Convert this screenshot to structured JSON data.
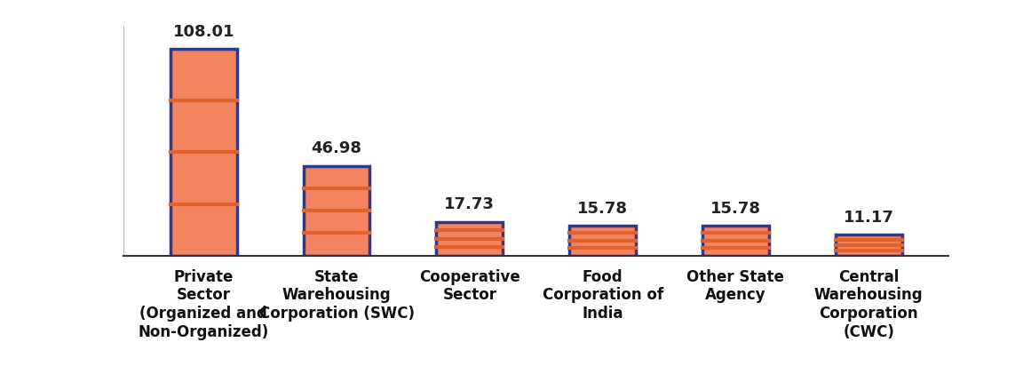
{
  "chart_data": {
    "type": "bar",
    "categories": [
      "Private\nSector\n(Organized and\nNon-Organized)",
      "State\nWarehousing\nCorporation (SWC)",
      "Cooperative\nSector",
      "Food\nCorporation of\nIndia",
      "Other State\nAgency",
      "Central\nWarehousing\nCorporation\n(CWC)"
    ],
    "values": [
      108.01,
      46.98,
      17.73,
      15.78,
      15.78,
      11.17
    ],
    "color": "#f4845f",
    "ylim": [
      0,
      120
    ],
    "data_labels": true,
    "tick_labels": "x"
  }
}
